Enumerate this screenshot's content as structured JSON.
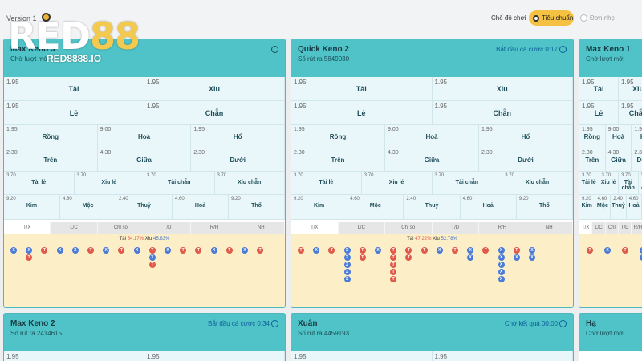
{
  "header": {
    "version": "Version 1",
    "mode_label": "Chế độ chơi",
    "mode_standard": "Tiêu chuẩn",
    "mode_simple": "Đơn nhẹ"
  },
  "logo": {
    "text_a": "RED",
    "text_b": "88",
    "domain": "RED8888.IO"
  },
  "labels": {
    "row1": [
      "Tài",
      "Xỉu"
    ],
    "row2": [
      "Lẻ",
      "Chẵn"
    ],
    "row3": [
      "Rồng",
      "Hoà",
      "Hổ"
    ],
    "row4": [
      "Trên",
      "Giữa",
      "Dưới"
    ],
    "row5": [
      "Tài lẻ",
      "Xỉu lẻ",
      "Tài chẵn",
      "Xỉu chẵn"
    ],
    "row6": [
      "Kim",
      "Mộc",
      "Thuỷ",
      "Hoả",
      "Thổ"
    ],
    "tabs": [
      "T/X",
      "L/C",
      "Chỉ số",
      "T/D",
      "R/H",
      "NH"
    ]
  },
  "odds": {
    "row1": [
      "1.95",
      "1.95"
    ],
    "row2": [
      "1.95",
      "1.95"
    ],
    "row3": [
      "1.95",
      "9.00",
      "1.95"
    ],
    "row4": [
      "2.30",
      "4.30",
      "2.30"
    ],
    "row5": [
      "3.70",
      "3.70",
      "3.70",
      "3.70"
    ],
    "row6": [
      "9.20",
      "4.60",
      "2.40",
      "4.60",
      "9.20"
    ]
  },
  "panels": {
    "p1": {
      "title": "Max Keno 3",
      "sub": "Chờ lượt mới",
      "tai": "54.17%",
      "xiu": "45.83%",
      "tai_label": "Tài",
      "xiu_label": "Xỉu"
    },
    "p2": {
      "title": "Quick Keno 2",
      "sub": "Số rút ra 5849030",
      "status": "Bắt đầu cá cược 0:17",
      "tai": "47.22%",
      "xiu": "52.78%",
      "tai_label": "Tài",
      "xiu_label": "Xỉu"
    },
    "p3": {
      "title": "Max Keno 1",
      "sub": "Chờ lượt mới"
    },
    "p4": {
      "title": "Max Keno 2",
      "sub": "Số rút ra 2414615",
      "status": "Bắt đầu cá cược 0:34",
      "odd_a": "1.95",
      "odd_b": "1.95"
    },
    "p5": {
      "title": "Xuân",
      "sub": "Số rút ra 4459193",
      "status": "Chờ kết quả 00:00",
      "odd_a": "1.95",
      "odd_b": "1.95"
    },
    "p6": {
      "title": "Hạ",
      "sub": "Chờ lượt mới"
    }
  },
  "trend": {
    "p1": [
      "X",
      "XT",
      "T",
      "X",
      "X",
      "T",
      "X",
      "T",
      "X",
      "TXT",
      "X",
      "T",
      "T",
      "X",
      "T",
      "X",
      "T"
    ],
    "p2": [
      "T",
      "X",
      "T",
      "XXXXX",
      "TT",
      "X",
      "TTTTT",
      "TT",
      "T",
      "X",
      "T",
      "XX",
      "T",
      "XXXXX",
      "TX",
      "XX"
    ],
    "p3": [
      "T",
      "X",
      "T",
      "XX",
      "XX"
    ]
  }
}
